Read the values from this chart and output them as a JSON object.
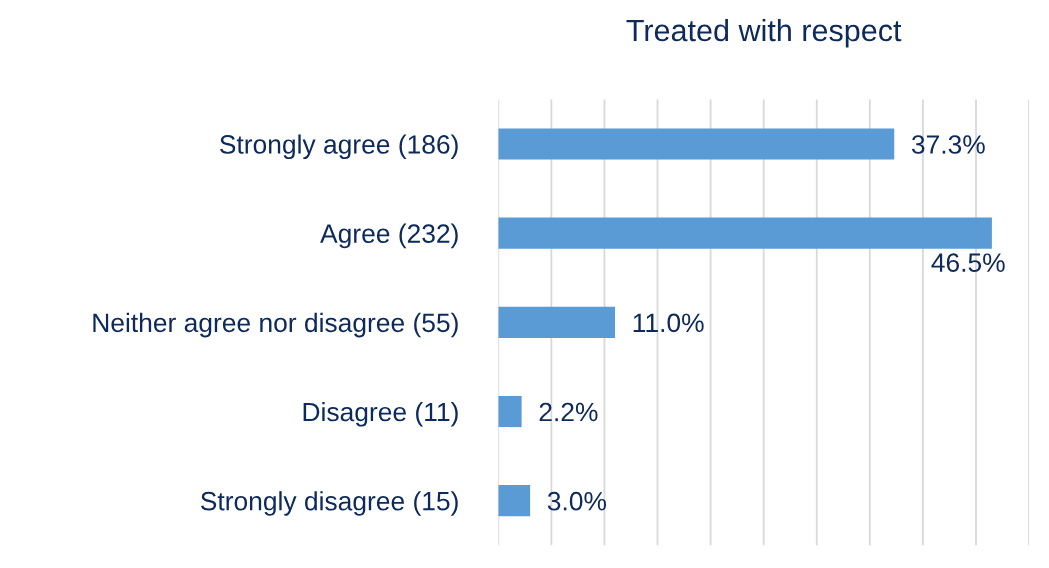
{
  "chart_data": {
    "type": "bar",
    "orientation": "horizontal",
    "title": "Treated with respect",
    "categories": [
      "Strongly agree (186)",
      "Agree (232)",
      "Neither agree nor disagree (55)",
      "Disagree (11)",
      "Strongly disagree (15)"
    ],
    "values": [
      37.3,
      46.5,
      11.0,
      2.2,
      3.0
    ],
    "value_labels": [
      "37.3%",
      "46.5%",
      "11.0%",
      "2.2%",
      "3.0%"
    ],
    "color": "#5b9bd5",
    "xlim": [
      0,
      50
    ],
    "xticks": [
      {
        "value": 0,
        "label": null
      },
      {
        "value": 5,
        "label": null
      },
      {
        "value": 10,
        "label": null
      },
      {
        "value": 15,
        "label": null
      },
      {
        "value": 20,
        "label": null
      },
      {
        "value": 25,
        "label": null
      },
      {
        "value": 30,
        "label": null
      },
      {
        "value": 35,
        "label": null
      },
      {
        "value": 40,
        "label": null
      },
      {
        "value": 45,
        "label": null
      },
      {
        "value": 50,
        "label": null
      }
    ],
    "tick_labels": "y",
    "grid": "x"
  }
}
